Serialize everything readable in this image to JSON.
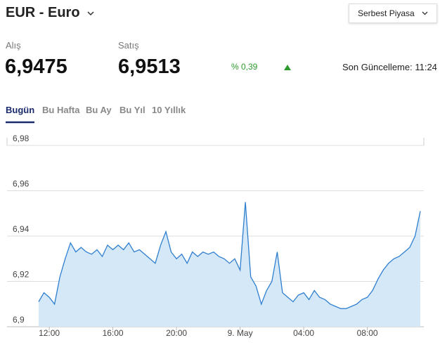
{
  "header": {
    "currency": "EUR - Euro",
    "market": "Serbest Piyasa"
  },
  "quotes": {
    "buy_label": "Alış",
    "buy": "6,9475",
    "sell_label": "Satış",
    "sell": "6,9513",
    "change": "% 0,39",
    "updated": "Son Güncelleme: 11:24"
  },
  "tabs": [
    "Bugün",
    "Bu Hafta",
    "Bu Ay",
    "Bu Yıl",
    "10 Yıllık"
  ],
  "chart_data": {
    "type": "area",
    "color": "#2f7fd0",
    "fill": "#d5e8f7",
    "grid": true,
    "categories": [
      null,
      null,
      "12:00",
      null,
      null,
      null,
      null,
      null,
      null,
      null,
      null,
      null,
      null,
      null,
      "16:00",
      null,
      null,
      null,
      null,
      null,
      null,
      null,
      null,
      null,
      null,
      null,
      "20:00",
      null,
      null,
      null,
      null,
      null,
      null,
      null,
      null,
      null,
      null,
      null,
      "9. May",
      null,
      null,
      null,
      null,
      null,
      null,
      null,
      null,
      null,
      null,
      null,
      "04:00",
      null,
      null,
      null,
      null,
      null,
      null,
      null,
      null,
      null,
      null,
      null,
      "08:00",
      null,
      null,
      null,
      null,
      null,
      null,
      null,
      null,
      null,
      null
    ],
    "values": [
      6.911,
      6.915,
      6.913,
      6.91,
      6.922,
      6.93,
      6.937,
      6.933,
      6.935,
      6.933,
      6.932,
      6.934,
      6.931,
      6.936,
      6.934,
      6.936,
      6.934,
      6.937,
      6.933,
      6.934,
      6.932,
      6.93,
      6.928,
      6.936,
      6.942,
      6.933,
      6.93,
      6.932,
      6.928,
      6.933,
      6.931,
      6.933,
      6.932,
      6.933,
      6.931,
      6.93,
      6.928,
      6.93,
      6.925,
      6.955,
      6.922,
      6.918,
      6.91,
      6.916,
      6.92,
      6.933,
      6.915,
      6.913,
      6.911,
      6.914,
      6.915,
      6.912,
      6.916,
      6.913,
      6.912,
      6.91,
      6.909,
      6.908,
      6.908,
      6.909,
      6.91,
      6.912,
      6.913,
      6.916,
      6.921,
      6.925,
      6.928,
      6.93,
      6.931,
      6.933,
      6.935,
      6.94,
      6.951
    ],
    "ylim": [
      6.9,
      6.98
    ],
    "yticks": [
      {
        "value": 6.9,
        "label": "6,9"
      },
      {
        "value": 6.92,
        "label": "6,92"
      },
      {
        "value": 6.94,
        "label": "6,94"
      },
      {
        "value": 6.96,
        "label": "6,96"
      },
      {
        "value": 6.98,
        "label": "6,98"
      }
    ]
  }
}
